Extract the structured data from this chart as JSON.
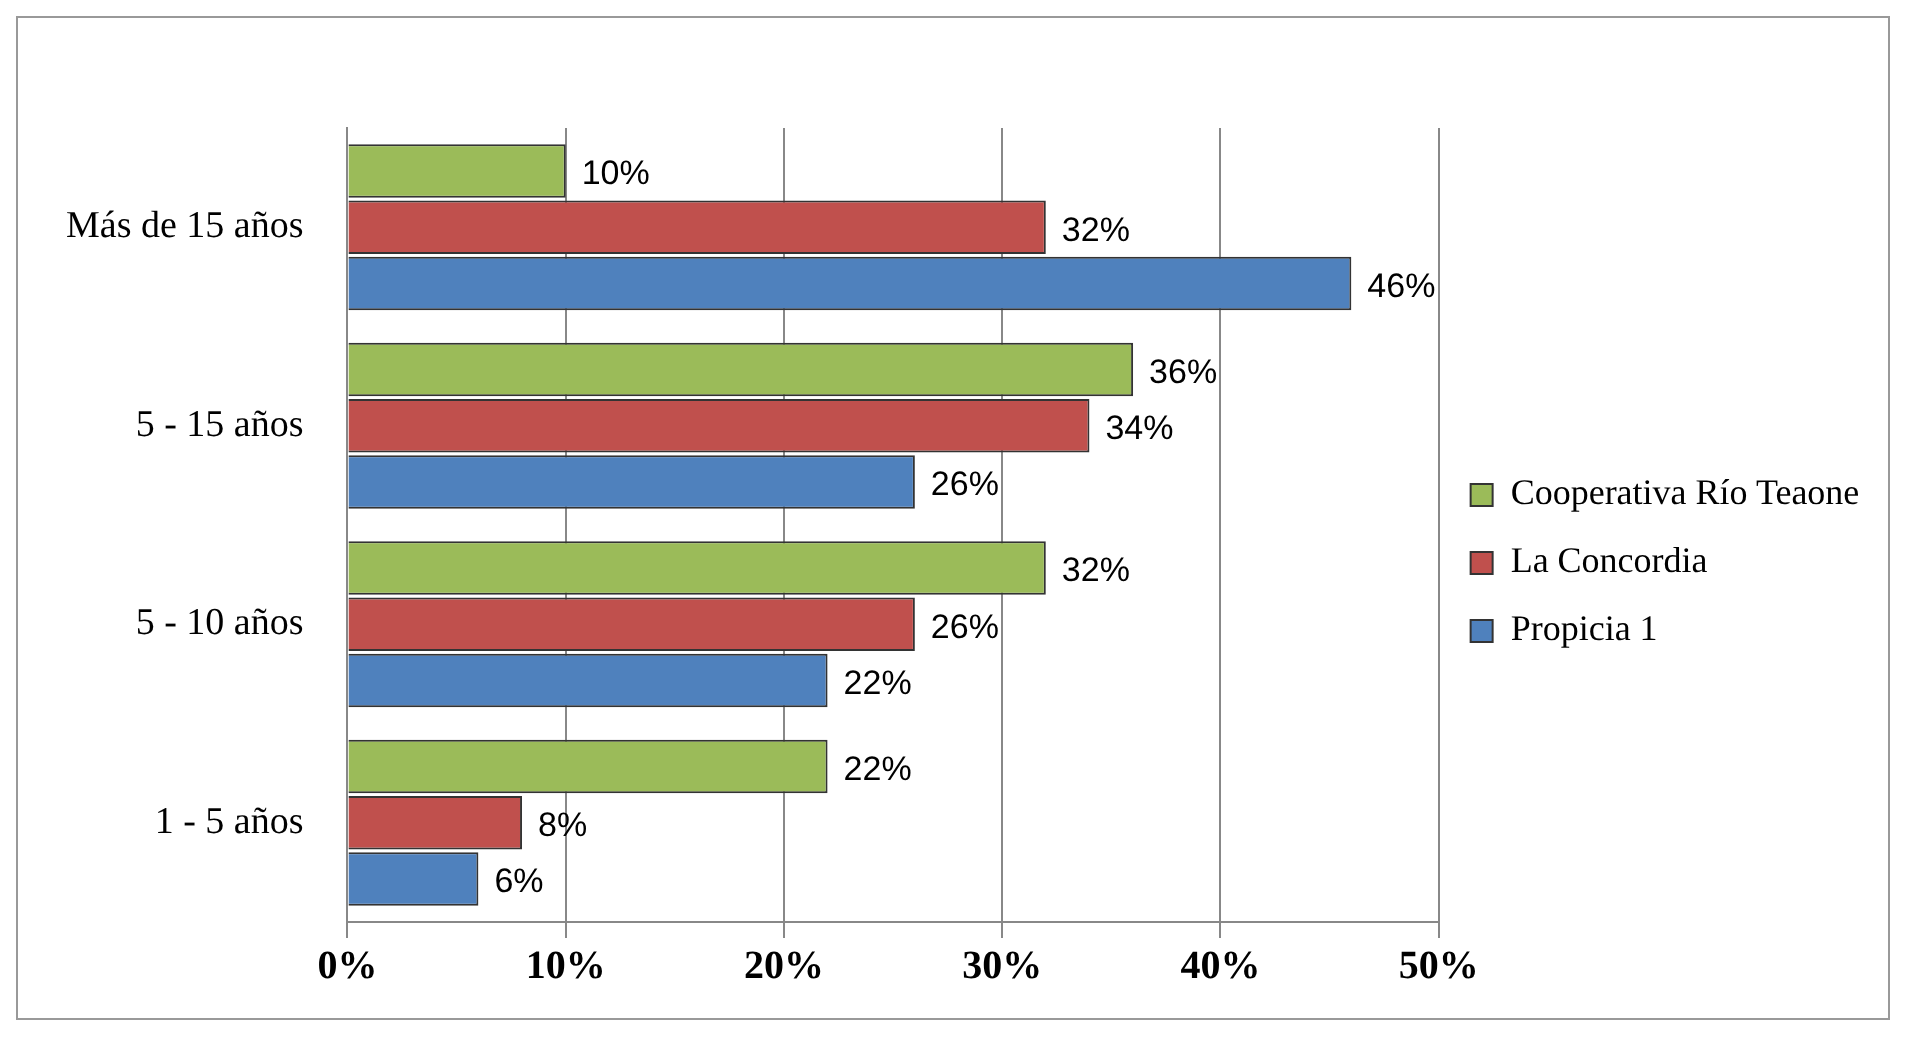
{
  "chart_data": {
    "type": "bar",
    "orientation": "horizontal",
    "categories": [
      "Más de 15 años",
      "5 - 15 años",
      "5 - 10 años",
      "1 - 5 años"
    ],
    "series": [
      {
        "name": "Cooperativa Río Teaone",
        "color": "#9bbb59",
        "values": [
          10,
          36,
          32,
          22
        ],
        "value_labels": [
          "10%",
          "36%",
          "32%",
          "22%"
        ]
      },
      {
        "name": "La Concordia",
        "color": "#c0504d",
        "values": [
          32,
          34,
          26,
          8
        ],
        "value_labels": [
          "32%",
          "34%",
          "26%",
          "8%"
        ]
      },
      {
        "name": "Propicia 1",
        "color": "#4f81bd",
        "values": [
          46,
          26,
          22,
          6
        ],
        "value_labels": [
          "46%",
          "26%",
          "22%",
          "6%"
        ]
      }
    ],
    "xlim": [
      0,
      50
    ],
    "xticks": [
      {
        "value": 0,
        "label": "0%"
      },
      {
        "value": 10,
        "label": "10%"
      },
      {
        "value": 20,
        "label": "20%"
      },
      {
        "value": 30,
        "label": "30%"
      },
      {
        "value": 40,
        "label": "40%"
      },
      {
        "value": 50,
        "label": "50%"
      }
    ],
    "grid": "x",
    "legend": "right"
  }
}
